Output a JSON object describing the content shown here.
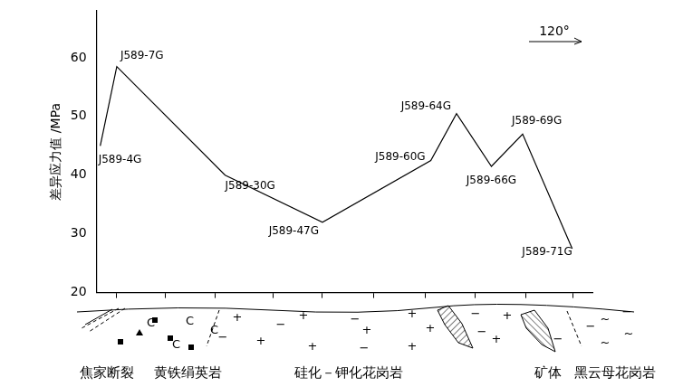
{
  "chart_data": {
    "type": "line",
    "y_label": "差异应力值 /MPa",
    "annotation": "120°",
    "x": [
      4,
      22,
      140,
      246,
      364,
      392,
      430,
      464,
      518
    ],
    "values": [
      45,
      58.5,
      40,
      32,
      42.5,
      50.5,
      41.5,
      47,
      27.5
    ],
    "point_labels": [
      "J589-4G",
      "J589-7G",
      "J589-30G",
      "J589-47G",
      "J589-60G",
      "J589-64G",
      "J589-66G",
      "J589-69G",
      "J589-71G"
    ],
    "xlim": [
      0,
      540
    ],
    "xticks": [
      22,
      75,
      129,
      192,
      246,
      302,
      358,
      412,
      467,
      519
    ],
    "ylim": [
      20,
      68
    ],
    "yticks": [
      20,
      30,
      40,
      50,
      60
    ],
    "color": "#000000",
    "grid": false,
    "tick_labels": "y",
    "marker": "none",
    "line_style": "solid"
  },
  "section": {
    "units": [
      {
        "name": "焦家断裂"
      },
      {
        "name": "黄铁绢英岩",
        "symbols": [
          "C"
        ]
      },
      {
        "name": "硅化－钾化花岗岩",
        "symbols": [
          "+",
          "−"
        ]
      },
      {
        "name": "矿体"
      },
      {
        "name": "黑云母花岗岩",
        "symbols": [
          "−",
          "~"
        ]
      }
    ]
  }
}
